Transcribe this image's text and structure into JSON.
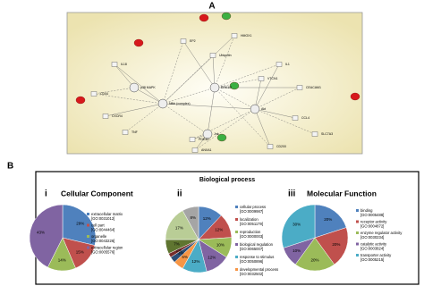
{
  "figure": {
    "panel_a_label": "A",
    "panel_b_label": "B"
  },
  "network": {
    "nodes": [
      "Nfkb (complex)",
      "ERK1/2",
      "Akt",
      "Jnk",
      "p38 MAPK",
      "EP2",
      "HMOX1",
      "Ubiquitin",
      "VTCN1",
      "CEACAM1",
      "IL18",
      "SLC7A3",
      "CCL4",
      "PDE4D",
      "CD200",
      "ANXA1",
      "CXCR4",
      "TNF",
      "IL1",
      "CD44"
    ]
  },
  "chart_data": [
    {
      "type": "pie",
      "numeral": "i",
      "title": "Cellular Component",
      "categories": [
        "extracellular matrix",
        "cell part",
        "organelle",
        "extracellular region"
      ],
      "go_ids": [
        "[GO:0031012]",
        "[GO:0044464]",
        "[GO:0043226]",
        "[GO:0005576]"
      ],
      "values": [
        29,
        15,
        14,
        43
      ],
      "value_labels": [
        "29%",
        "15%",
        "14%",
        "43%"
      ],
      "colors": [
        "#4f81bd",
        "#c0504d",
        "#9bbb59",
        "#8064a2"
      ]
    },
    {
      "type": "pie",
      "numeral": "ii",
      "title": "Biological process",
      "categories": [
        "cellular process",
        "localization",
        "reproduction",
        "biological regulation",
        "response to stimulus",
        "developmental process",
        null,
        null,
        null,
        null,
        null
      ],
      "go_ids": [
        "[GO:0009987]",
        "[GO:0051179]",
        "[GO:0000003]",
        "[GO:0065007]",
        "[GO:0050896]",
        "[GO:0032502]",
        null,
        null,
        null,
        null,
        null
      ],
      "values": [
        12,
        12,
        10,
        12,
        12,
        5,
        3,
        2,
        7,
        17,
        8
      ],
      "value_labels": [
        "12%",
        "12%",
        "10%",
        "12%",
        "12%",
        "5%",
        "3%",
        "2%",
        "7%",
        "17%",
        "8%"
      ],
      "colors": [
        "#4f81bd",
        "#c0504d",
        "#9bbb59",
        "#8064a2",
        "#4bacc6",
        "#f79646",
        "#2c4d75",
        "#772c2a",
        "#5f7530",
        "#b9cd96",
        "#a5a5a5"
      ]
    },
    {
      "type": "pie",
      "numeral": "iii",
      "title": "Molecular Function",
      "categories": [
        "binding",
        "receptor activity",
        "enzyme regulator activity",
        "catalytic activity",
        "transporter activity"
      ],
      "go_ids": [
        "[GO:0005488]",
        "[GO:0004872]",
        "[GO:0030234]",
        "[GO:0003824]",
        "[GO:0005215]"
      ],
      "values": [
        20,
        20,
        20,
        10,
        30
      ],
      "value_labels": [
        "20%",
        "20%",
        "20%",
        "10%",
        "30%"
      ],
      "colors": [
        "#4f81bd",
        "#c0504d",
        "#9bbb59",
        "#8064a2",
        "#4bacc6"
      ]
    }
  ]
}
